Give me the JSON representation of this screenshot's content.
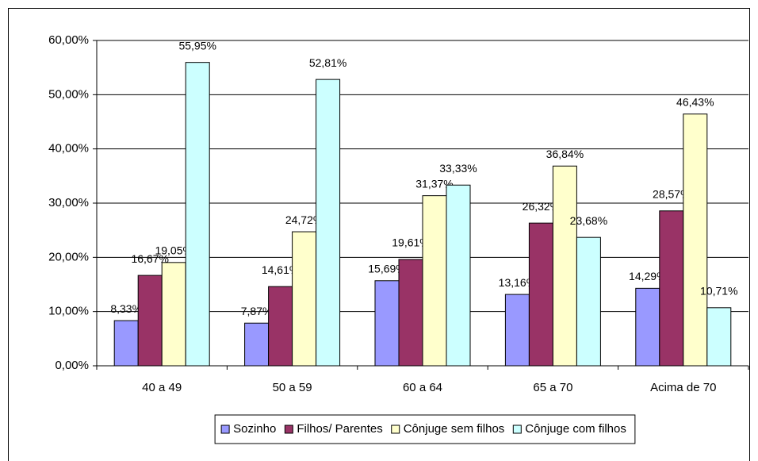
{
  "chart_data": {
    "type": "bar",
    "categories": [
      "40 a 49",
      "50 a 59",
      "60 a 64",
      "65 a 70",
      "Acima de 70"
    ],
    "series": [
      {
        "name": "Sozinho",
        "color": "#9999ff",
        "values": [
          8.33,
          7.87,
          15.69,
          13.16,
          14.29
        ],
        "value_labels": [
          "8,33%",
          "7,87%",
          "15,69%",
          "13,16%",
          "14,29%"
        ]
      },
      {
        "name": "Filhos/ Parentes",
        "color": "#993366",
        "values": [
          16.67,
          14.61,
          19.61,
          26.32,
          28.57
        ],
        "value_labels": [
          "16,67%",
          "14,61%",
          "19,61%",
          "26,32%",
          "28,57%"
        ]
      },
      {
        "name": "Cônjuge sem filhos",
        "color": "#ffffcc",
        "values": [
          19.05,
          24.72,
          31.37,
          36.84,
          46.43
        ],
        "value_labels": [
          "19,05%",
          "24,72%",
          "31,37%",
          "36,84%",
          "46,43%"
        ]
      },
      {
        "name": "Cônjuge com filhos",
        "color": "#ccffff",
        "values": [
          55.95,
          52.81,
          33.33,
          23.68,
          10.71
        ],
        "value_labels": [
          "55,95%",
          "52,81%",
          "33,33%",
          "23,68%",
          "10,71%"
        ]
      }
    ],
    "ylim": [
      0,
      60
    ],
    "yticks": [
      {
        "value": 0,
        "label": "0,00%"
      },
      {
        "value": 10,
        "label": "10,00%"
      },
      {
        "value": 20,
        "label": "20,00%"
      },
      {
        "value": 30,
        "label": "30,00%"
      },
      {
        "value": 40,
        "label": "40,00%"
      },
      {
        "value": 50,
        "label": "50,00%"
      },
      {
        "value": 60,
        "label": "60,00%"
      }
    ],
    "grid": true,
    "legend": "bottom"
  }
}
